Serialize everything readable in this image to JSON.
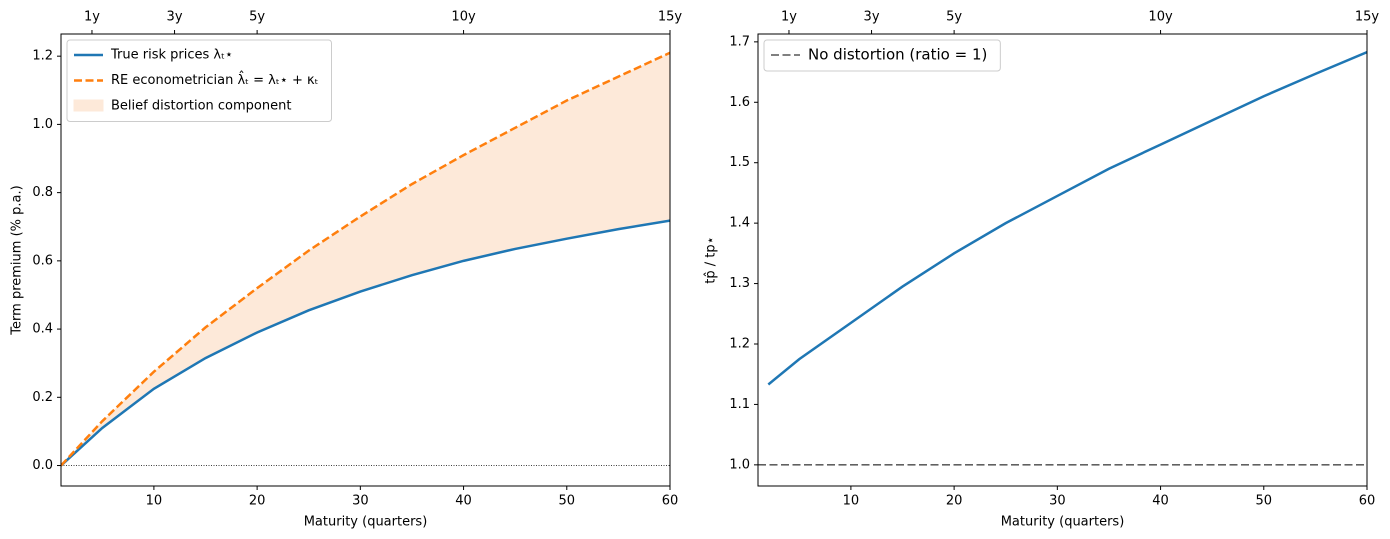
{
  "chart_data": [
    {
      "type": "line",
      "xlabel": "Maturity (quarters)",
      "ylabel": "Term premium (% p.a.)",
      "x": [
        1,
        5,
        10,
        15,
        20,
        25,
        30,
        35,
        40,
        45,
        50,
        55,
        60
      ],
      "series": [
        {
          "name": "True risk prices λₜ⋆",
          "color": "#1f77b4",
          "linestyle": "solid",
          "values": [
            0,
            0.11,
            0.225,
            0.315,
            0.39,
            0.455,
            0.51,
            0.558,
            0.6,
            0.635,
            0.665,
            0.693,
            0.718
          ]
        },
        {
          "name": "RE econometrician λ̂ₜ = λₜ⋆ + κₜ",
          "color": "#ff7f0e",
          "linestyle": "dashed",
          "values": [
            0,
            0.13,
            0.275,
            0.405,
            0.52,
            0.63,
            0.73,
            0.825,
            0.91,
            0.99,
            1.07,
            1.14,
            1.21
          ]
        }
      ],
      "fill": {
        "label": "Belief distortion component",
        "color": "#fde9d9"
      },
      "reference_line": {
        "value": 0,
        "style": "dotted"
      },
      "xlim": [
        1,
        60
      ],
      "xticks": [
        10,
        20,
        30,
        40,
        50,
        60
      ],
      "top_xticks": [
        {
          "value": 4,
          "label": "1y"
        },
        {
          "value": 12,
          "label": "3y"
        },
        {
          "value": 20,
          "label": "5y"
        },
        {
          "value": 40,
          "label": "10y"
        },
        {
          "value": 60,
          "label": "15y"
        }
      ],
      "ylim": [
        -0.06,
        1.265
      ],
      "yticks": [
        {
          "value": 0,
          "label": "0.0"
        },
        0.2,
        0.4,
        0.6,
        0.8,
        {
          "value": 1,
          "label": "1.0"
        },
        1.2
      ],
      "legend": "upper left"
    },
    {
      "type": "line",
      "xlabel": "Maturity (quarters)",
      "ylabel": "tp̂ / tp⋆",
      "x": [
        2,
        5,
        10,
        15,
        20,
        25,
        30,
        35,
        40,
        45,
        50,
        55,
        60
      ],
      "series": [
        {
          "color": "#1f77b4",
          "linestyle": "solid",
          "values": [
            1.133,
            1.175,
            1.235,
            1.295,
            1.35,
            1.4,
            1.445,
            1.49,
            1.53,
            1.57,
            1.61,
            1.647,
            1.683
          ]
        }
      ],
      "reference_line": {
        "value": 1,
        "style": "dashed",
        "label": "No distortion (ratio = 1)"
      },
      "xlim": [
        1,
        60
      ],
      "xticks": [
        10,
        20,
        30,
        40,
        50,
        60
      ],
      "top_xticks": [
        {
          "value": 4,
          "label": "1y"
        },
        {
          "value": 12,
          "label": "3y"
        },
        {
          "value": 20,
          "label": "5y"
        },
        {
          "value": 40,
          "label": "10y"
        },
        {
          "value": 60,
          "label": "15y"
        }
      ],
      "ylim": [
        0.965,
        1.713
      ],
      "yticks": [
        {
          "value": 1,
          "label": "1.0"
        },
        1.1,
        1.2,
        1.3,
        1.4,
        1.5,
        1.6,
        1.7
      ],
      "legend": "upper left"
    }
  ]
}
